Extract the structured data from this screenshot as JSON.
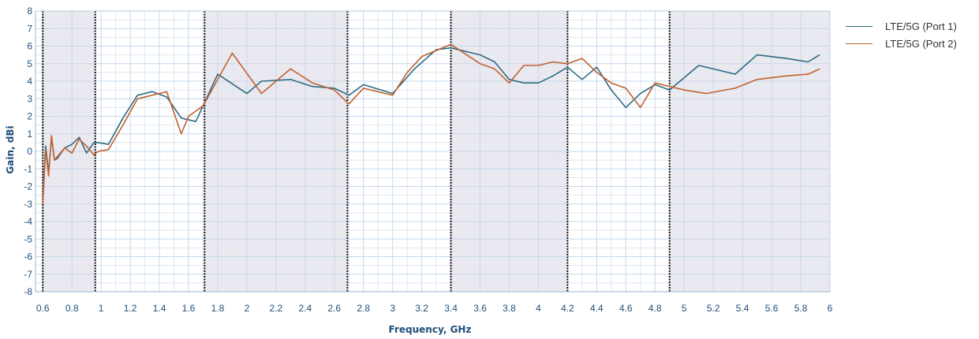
{
  "chart_data": {
    "type": "line",
    "title": "",
    "xlabel": "Frequency, GHz",
    "ylabel": "Gain, dBi",
    "xlim": [
      0.55,
      6.0
    ],
    "ylim": [
      -8,
      8
    ],
    "x_ticks": [
      0.6,
      0.8,
      1,
      1.2,
      1.4,
      1.6,
      1.8,
      2,
      2.2,
      2.4,
      2.6,
      2.8,
      3,
      3.2,
      3.4,
      3.6,
      3.8,
      4,
      4.2,
      4.4,
      4.6,
      4.8,
      5,
      5.2,
      5.4,
      5.6,
      5.8,
      6
    ],
    "y_ticks": [
      8,
      7,
      6,
      5,
      4,
      3,
      2,
      1,
      0,
      -1,
      -2,
      -3,
      -4,
      -5,
      -6,
      -7,
      -8
    ],
    "grid": true,
    "legend_position": "right",
    "shaded_bands": [
      [
        0.6,
        0.96
      ],
      [
        1.71,
        2.69
      ],
      [
        3.4,
        4.2
      ],
      [
        4.9,
        6.0
      ]
    ],
    "band_edges": [
      0.6,
      0.96,
      1.71,
      2.69,
      3.4,
      4.2,
      4.9
    ],
    "series": [
      {
        "name": "LTE/5G (Port 1)",
        "color": "#2e6b82",
        "x": [
          0.6,
          0.62,
          0.64,
          0.66,
          0.68,
          0.7,
          0.75,
          0.8,
          0.85,
          0.9,
          0.95,
          0.98,
          1.05,
          1.15,
          1.25,
          1.35,
          1.45,
          1.55,
          1.65,
          1.8,
          2.0,
          2.1,
          2.3,
          2.45,
          2.6,
          2.7,
          2.8,
          3.0,
          3.15,
          3.3,
          3.4,
          3.6,
          3.7,
          3.8,
          3.9,
          4.0,
          4.1,
          4.2,
          4.3,
          4.4,
          4.5,
          4.6,
          4.7,
          4.8,
          4.9,
          5.0,
          5.1,
          5.2,
          5.35,
          5.5,
          5.7,
          5.85,
          5.93
        ],
        "y": [
          -2.8,
          0.3,
          -1.2,
          0.8,
          -0.5,
          -0.4,
          0.2,
          0.4,
          0.8,
          -0.1,
          0.5,
          0.5,
          0.4,
          1.9,
          3.2,
          3.4,
          3.1,
          1.9,
          1.7,
          4.4,
          3.3,
          4.0,
          4.1,
          3.7,
          3.6,
          3.2,
          3.8,
          3.3,
          4.7,
          5.8,
          5.9,
          5.5,
          5.1,
          4.1,
          3.9,
          3.9,
          4.3,
          4.8,
          4.1,
          4.8,
          3.5,
          2.5,
          3.3,
          3.8,
          3.5,
          4.2,
          4.9,
          4.7,
          4.4,
          5.5,
          5.3,
          5.1,
          5.5
        ]
      },
      {
        "name": "LTE/5G (Port 2)",
        "color": "#c1622f",
        "x": [
          0.6,
          0.62,
          0.64,
          0.66,
          0.68,
          0.7,
          0.75,
          0.8,
          0.85,
          0.9,
          0.95,
          0.98,
          1.05,
          1.15,
          1.25,
          1.35,
          1.45,
          1.55,
          1.6,
          1.7,
          1.9,
          2.1,
          2.3,
          2.45,
          2.6,
          2.7,
          2.8,
          3.0,
          3.1,
          3.2,
          3.4,
          3.6,
          3.7,
          3.8,
          3.9,
          4.0,
          4.1,
          4.2,
          4.3,
          4.4,
          4.5,
          4.6,
          4.7,
          4.8,
          4.9,
          5.0,
          5.15,
          5.35,
          5.5,
          5.7,
          5.85,
          5.93
        ],
        "y": [
          -3.0,
          0.1,
          -1.4,
          0.9,
          -0.5,
          -0.3,
          0.2,
          -0.1,
          0.7,
          0.3,
          -0.2,
          0.0,
          0.1,
          1.5,
          3.0,
          3.2,
          3.4,
          1.0,
          2.0,
          2.6,
          5.6,
          3.3,
          4.7,
          3.9,
          3.5,
          2.7,
          3.6,
          3.2,
          4.5,
          5.4,
          6.1,
          5.0,
          4.7,
          3.9,
          4.9,
          4.9,
          5.1,
          5.0,
          5.3,
          4.5,
          3.9,
          3.6,
          2.5,
          3.9,
          3.7,
          3.5,
          3.3,
          3.6,
          4.1,
          4.3,
          4.4,
          4.7
        ]
      }
    ]
  }
}
